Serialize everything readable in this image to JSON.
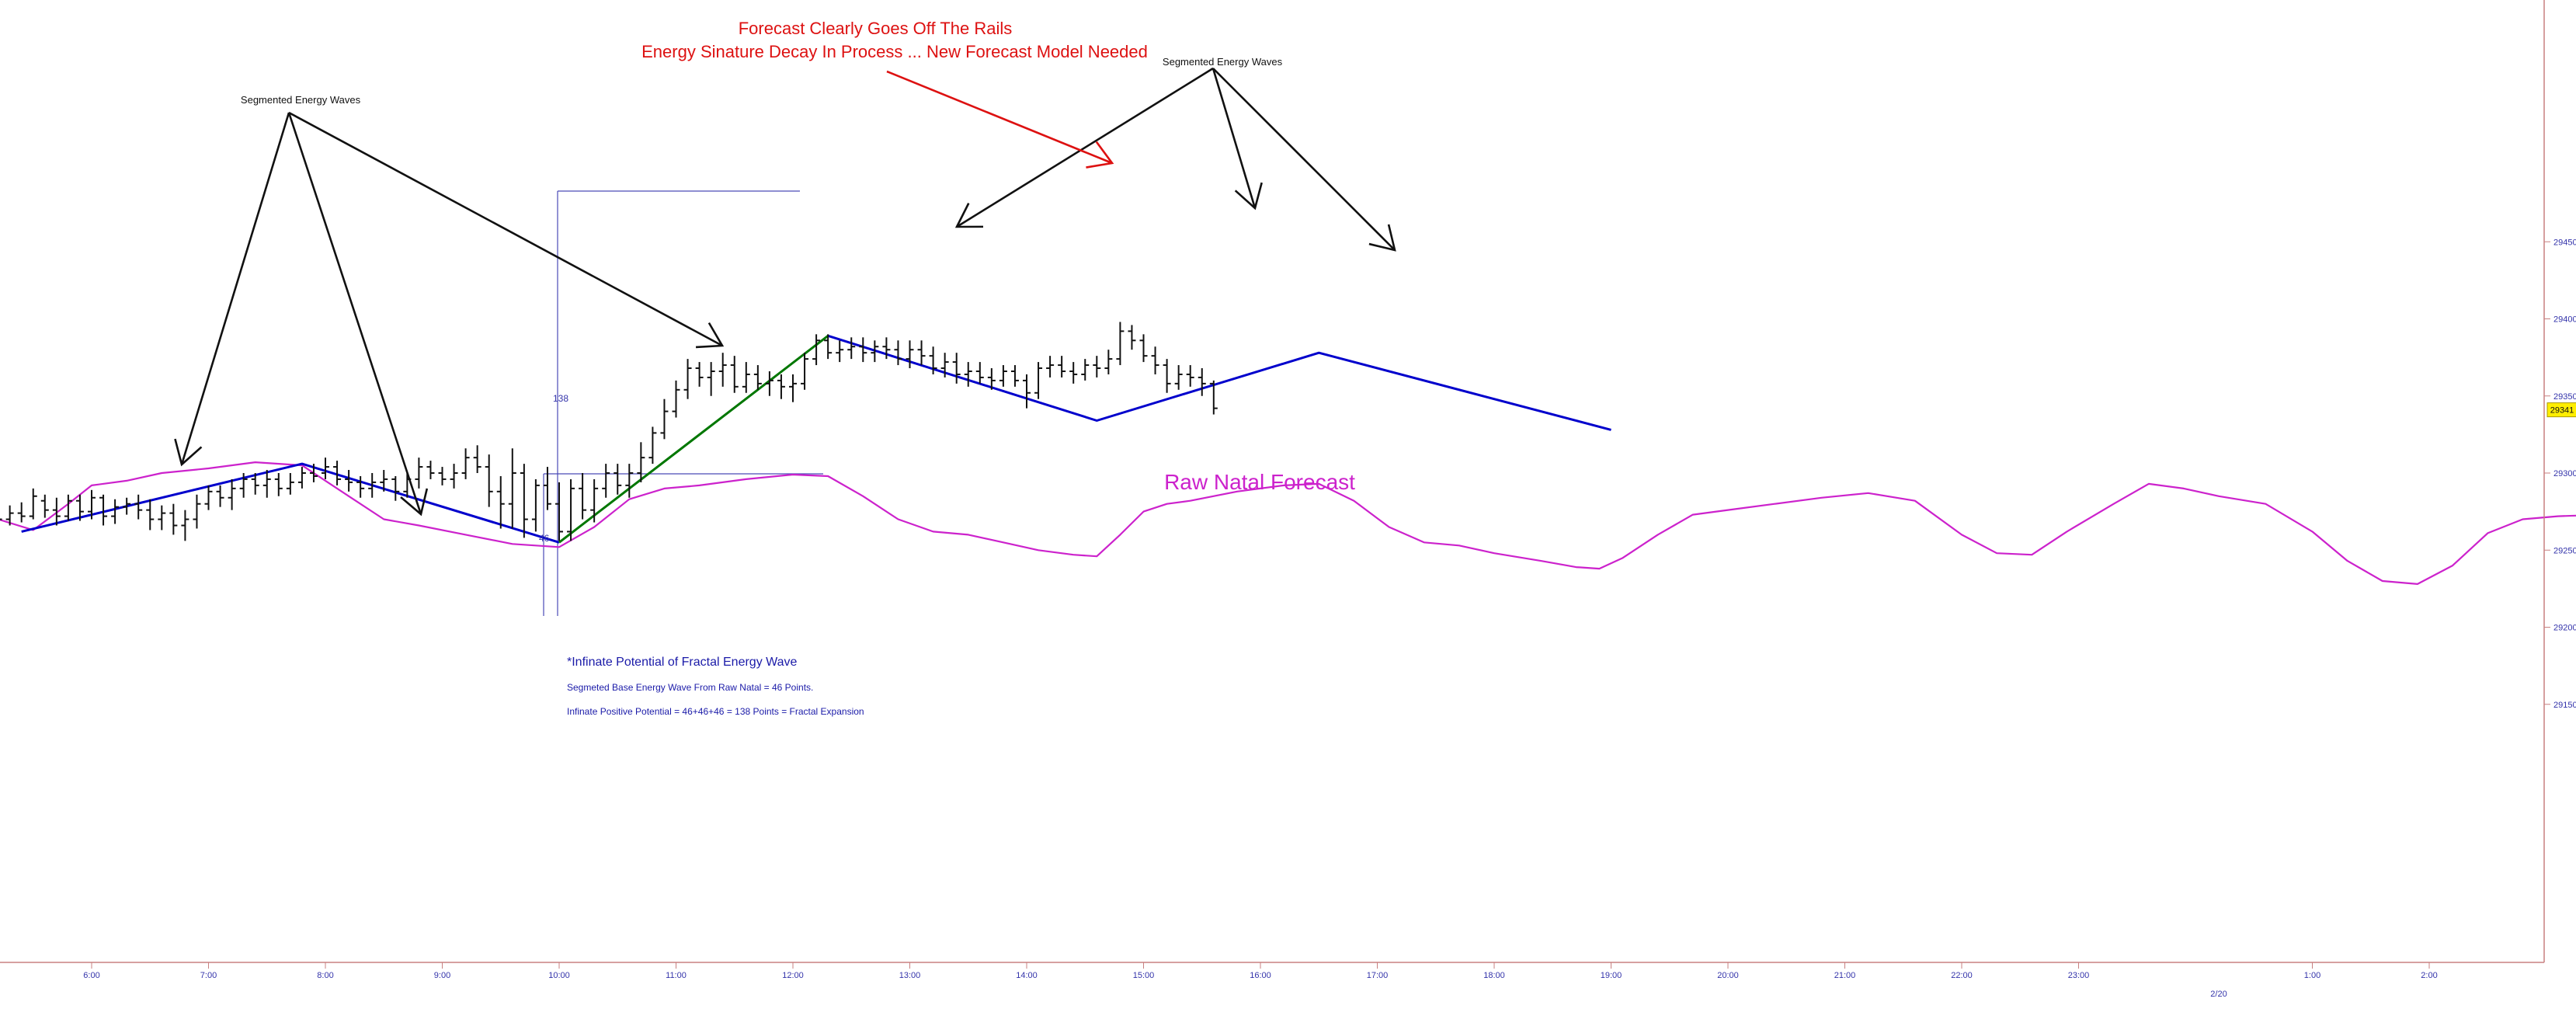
{
  "chart_data": {
    "type": "line",
    "xlabel": "",
    "ylabel": "",
    "x_axis": {
      "ticks": [
        {
          "label": "6:00",
          "t": 6.0
        },
        {
          "label": "7:00",
          "t": 7.0
        },
        {
          "label": "8:00",
          "t": 8.0
        },
        {
          "label": "9:00",
          "t": 9.0
        },
        {
          "label": "10:00",
          "t": 10.0
        },
        {
          "label": "11:00",
          "t": 11.0
        },
        {
          "label": "12:00",
          "t": 12.0
        },
        {
          "label": "13:00",
          "t": 13.0
        },
        {
          "label": "14:00",
          "t": 14.0
        },
        {
          "label": "15:00",
          "t": 15.0
        },
        {
          "label": "16:00",
          "t": 16.0
        },
        {
          "label": "17:00",
          "t": 17.0
        },
        {
          "label": "18:00",
          "t": 18.0
        },
        {
          "label": "19:00",
          "t": 19.0
        },
        {
          "label": "20:00",
          "t": 20.0
        },
        {
          "label": "21:00",
          "t": 21.0
        },
        {
          "label": "22:00",
          "t": 22.0
        },
        {
          "label": "23:00",
          "t": 23.0
        },
        {
          "label": "1:00",
          "t": 25.0
        },
        {
          "label": "2:00",
          "t": 26.0
        }
      ],
      "date_marker": {
        "label": "2/20",
        "t": 24.0
      }
    },
    "y_axis": {
      "ticks": [
        29150,
        29200,
        29250,
        29300,
        29350,
        29400,
        29450
      ],
      "range": [
        29137,
        29452
      ]
    },
    "last_price": 29341,
    "ohlc": [
      [
        5.2,
        29268,
        29275,
        29263,
        29270
      ],
      [
        5.3,
        29270,
        29279,
        29266,
        29274
      ],
      [
        5.4,
        29274,
        29281,
        29268,
        29272
      ],
      [
        5.5,
        29272,
        29290,
        29270,
        29285
      ],
      [
        5.6,
        29282,
        29286,
        29271,
        29276
      ],
      [
        5.7,
        29276,
        29284,
        29266,
        29272
      ],
      [
        5.8,
        29272,
        29286,
        29269,
        29282
      ],
      [
        5.9,
        29282,
        29286,
        29269,
        29275
      ],
      [
        6.0,
        29275,
        29289,
        29270,
        29284
      ],
      [
        6.1,
        29284,
        29286,
        29266,
        29272
      ],
      [
        6.2,
        29272,
        29283,
        29267,
        29278
      ],
      [
        6.3,
        29278,
        29284,
        29273,
        29280
      ],
      [
        6.4,
        29280,
        29286,
        29270,
        29276
      ],
      [
        6.5,
        29276,
        29283,
        29263,
        29270
      ],
      [
        6.6,
        29270,
        29279,
        29263,
        29274
      ],
      [
        6.7,
        29274,
        29280,
        29260,
        29266
      ],
      [
        6.8,
        29266,
        29276,
        29256,
        29270
      ],
      [
        6.9,
        29270,
        29286,
        29264,
        29280
      ],
      [
        7.0,
        29280,
        29292,
        29276,
        29288
      ],
      [
        7.1,
        29288,
        29292,
        29278,
        29284
      ],
      [
        7.2,
        29284,
        29296,
        29276,
        29290
      ],
      [
        7.3,
        29290,
        29300,
        29284,
        29296
      ],
      [
        7.4,
        29296,
        29300,
        29286,
        29292
      ],
      [
        7.5,
        29292,
        29302,
        29284,
        29296
      ],
      [
        7.6,
        29296,
        29300,
        29285,
        29290
      ],
      [
        7.7,
        29290,
        29300,
        29286,
        29294
      ],
      [
        7.8,
        29294,
        29304,
        29290,
        29300
      ],
      [
        7.9,
        29300,
        29306,
        29294,
        29298
      ],
      [
        8.0,
        29300,
        29310,
        29296,
        29304
      ],
      [
        8.1,
        29304,
        29308,
        29292,
        29296
      ],
      [
        8.2,
        29296,
        29302,
        29288,
        29294
      ],
      [
        8.3,
        29294,
        29298,
        29284,
        29290
      ],
      [
        8.4,
        29290,
        29300,
        29284,
        29294
      ],
      [
        8.5,
        29294,
        29302,
        29288,
        29296
      ],
      [
        8.6,
        29296,
        29298,
        29282,
        29288
      ],
      [
        8.7,
        29288,
        29300,
        29284,
        29296
      ],
      [
        8.8,
        29296,
        29310,
        29290,
        29304
      ],
      [
        8.9,
        29304,
        29308,
        29296,
        29300
      ],
      [
        9.0,
        29300,
        29304,
        29292,
        29296
      ],
      [
        9.1,
        29296,
        29306,
        29290,
        29300
      ],
      [
        9.2,
        29300,
        29316,
        29296,
        29310
      ],
      [
        9.3,
        29310,
        29318,
        29300,
        29304
      ],
      [
        9.4,
        29304,
        29312,
        29278,
        29288
      ],
      [
        9.5,
        29288,
        29298,
        29264,
        29280
      ],
      [
        9.6,
        29280,
        29316,
        29264,
        29300
      ],
      [
        9.7,
        29300,
        29306,
        29258,
        29270
      ],
      [
        9.8,
        29270,
        29296,
        29262,
        29292
      ],
      [
        9.9,
        29292,
        29304,
        29276,
        29280
      ],
      [
        10.0,
        29280,
        29294,
        29256,
        29262
      ],
      [
        10.1,
        29262,
        29296,
        29256,
        29290
      ],
      [
        10.2,
        29290,
        29300,
        29270,
        29276
      ],
      [
        10.3,
        29276,
        29296,
        29268,
        29290
      ],
      [
        10.4,
        29290,
        29306,
        29284,
        29300
      ],
      [
        10.5,
        29300,
        29306,
        29286,
        29292
      ],
      [
        10.6,
        29292,
        29306,
        29284,
        29300
      ],
      [
        10.7,
        29300,
        29320,
        29294,
        29310
      ],
      [
        10.8,
        29310,
        29330,
        29306,
        29326
      ],
      [
        10.9,
        29326,
        29348,
        29322,
        29340
      ],
      [
        11.0,
        29340,
        29360,
        29336,
        29354
      ],
      [
        11.1,
        29354,
        29374,
        29348,
        29368
      ],
      [
        11.2,
        29368,
        29372,
        29356,
        29362
      ],
      [
        11.3,
        29362,
        29372,
        29350,
        29366
      ],
      [
        11.4,
        29366,
        29378,
        29356,
        29370
      ],
      [
        11.5,
        29370,
        29376,
        29352,
        29356
      ],
      [
        11.6,
        29356,
        29372,
        29352,
        29364
      ],
      [
        11.7,
        29364,
        29370,
        29354,
        29358
      ],
      [
        11.8,
        29358,
        29366,
        29350,
        29360
      ],
      [
        11.9,
        29360,
        29364,
        29348,
        29356
      ],
      [
        12.0,
        29356,
        29364,
        29346,
        29358
      ],
      [
        12.1,
        29358,
        29378,
        29354,
        29374
      ],
      [
        12.2,
        29374,
        29390,
        29370,
        29386
      ],
      [
        12.3,
        29386,
        29390,
        29374,
        29378
      ],
      [
        12.4,
        29378,
        29386,
        29372,
        29380
      ],
      [
        12.5,
        29380,
        29388,
        29374,
        29382
      ],
      [
        12.6,
        29382,
        29388,
        29372,
        29378
      ],
      [
        12.7,
        29378,
        29386,
        29372,
        29382
      ],
      [
        12.8,
        29382,
        29388,
        29374,
        29380
      ],
      [
        12.9,
        29380,
        29386,
        29370,
        29374
      ],
      [
        13.0,
        29374,
        29386,
        29368,
        29380
      ],
      [
        13.1,
        29380,
        29386,
        29370,
        29376
      ],
      [
        13.2,
        29376,
        29382,
        29364,
        29368
      ],
      [
        13.3,
        29368,
        29378,
        29362,
        29372
      ],
      [
        13.4,
        29372,
        29378,
        29358,
        29364
      ],
      [
        13.5,
        29364,
        29372,
        29356,
        29366
      ],
      [
        13.6,
        29366,
        29372,
        29358,
        29362
      ],
      [
        13.7,
        29362,
        29368,
        29354,
        29360
      ],
      [
        13.8,
        29360,
        29370,
        29356,
        29366
      ],
      [
        13.9,
        29366,
        29370,
        29356,
        29360
      ],
      [
        14.0,
        29360,
        29364,
        29342,
        29352
      ],
      [
        14.1,
        29352,
        29372,
        29348,
        29368
      ],
      [
        14.2,
        29368,
        29376,
        29362,
        29370
      ],
      [
        14.3,
        29370,
        29376,
        29362,
        29366
      ],
      [
        14.4,
        29366,
        29372,
        29358,
        29364
      ],
      [
        14.5,
        29364,
        29374,
        29360,
        29370
      ],
      [
        14.6,
        29370,
        29376,
        29362,
        29368
      ],
      [
        14.7,
        29368,
        29380,
        29364,
        29374
      ],
      [
        14.8,
        29374,
        29398,
        29370,
        29392
      ],
      [
        14.9,
        29392,
        29396,
        29380,
        29386
      ],
      [
        15.0,
        29386,
        29390,
        29372,
        29376
      ],
      [
        15.1,
        29376,
        29382,
        29364,
        29370
      ],
      [
        15.2,
        29370,
        29374,
        29352,
        29358
      ],
      [
        15.3,
        29358,
        29370,
        29354,
        29364
      ],
      [
        15.4,
        29364,
        29370,
        29356,
        29362
      ],
      [
        15.5,
        29362,
        29368,
        29350,
        29358
      ],
      [
        15.6,
        29358,
        29360,
        29338,
        29342
      ]
    ],
    "series": [
      {
        "name": "Raw Natal Forecast",
        "color": "#cc22cc",
        "points": [
          [
            5.2,
            29270
          ],
          [
            5.5,
            29263
          ],
          [
            5.8,
            29280
          ],
          [
            6.0,
            29292
          ],
          [
            6.3,
            29295
          ],
          [
            6.6,
            29300
          ],
          [
            7.0,
            29303
          ],
          [
            7.4,
            29307
          ],
          [
            7.8,
            29305
          ],
          [
            8.2,
            29285
          ],
          [
            8.5,
            29270
          ],
          [
            8.8,
            29266
          ],
          [
            9.2,
            29260
          ],
          [
            9.6,
            29254
          ],
          [
            10.0,
            29252
          ],
          [
            10.3,
            29265
          ],
          [
            10.6,
            29283
          ],
          [
            10.9,
            29290
          ],
          [
            11.2,
            29292
          ],
          [
            11.6,
            29296
          ],
          [
            12.0,
            29299
          ],
          [
            12.3,
            29298
          ],
          [
            12.6,
            29285
          ],
          [
            12.9,
            29270
          ],
          [
            13.2,
            29262
          ],
          [
            13.5,
            29260
          ],
          [
            13.8,
            29255
          ],
          [
            14.1,
            29250
          ],
          [
            14.4,
            29247
          ],
          [
            14.6,
            29246
          ],
          [
            14.8,
            29260
          ],
          [
            15.0,
            29275
          ],
          [
            15.2,
            29280
          ],
          [
            15.4,
            29282
          ],
          [
            15.8,
            29288
          ],
          [
            16.2,
            29292
          ],
          [
            16.5,
            29293
          ],
          [
            16.8,
            29282
          ],
          [
            17.1,
            29265
          ],
          [
            17.4,
            29255
          ],
          [
            17.7,
            29253
          ],
          [
            18.0,
            29248
          ],
          [
            18.4,
            29243
          ],
          [
            18.7,
            29239
          ],
          [
            18.9,
            29238
          ],
          [
            19.1,
            29245
          ],
          [
            19.4,
            29260
          ],
          [
            19.7,
            29273
          ],
          [
            20.0,
            29276
          ],
          [
            20.4,
            29280
          ],
          [
            20.8,
            29284
          ],
          [
            21.2,
            29287
          ],
          [
            21.6,
            29282
          ],
          [
            22.0,
            29260
          ],
          [
            22.3,
            29248
          ],
          [
            22.6,
            29247
          ],
          [
            22.9,
            29262
          ],
          [
            23.3,
            29280
          ],
          [
            23.6,
            29293
          ],
          [
            23.9,
            29290
          ],
          [
            24.2,
            29285
          ],
          [
            24.6,
            29280
          ],
          [
            25.0,
            29262
          ],
          [
            25.3,
            29243
          ],
          [
            25.6,
            29230
          ],
          [
            25.9,
            29228
          ],
          [
            26.2,
            29240
          ],
          [
            26.5,
            29261
          ],
          [
            26.8,
            29270
          ],
          [
            27.1,
            29272
          ],
          [
            27.5,
            29273
          ],
          [
            27.9,
            29273
          ]
        ]
      },
      {
        "name": "",
        "color": "#0000cc",
        "points": [
          [
            5.4,
            29262
          ],
          [
            7.8,
            29306
          ],
          [
            10.0,
            29255
          ]
        ]
      },
      {
        "name": "",
        "color": "#0000cc",
        "points": [
          [
            12.3,
            29389
          ],
          [
            14.6,
            29334
          ],
          [
            16.5,
            29378
          ],
          [
            19.0,
            29328
          ]
        ]
      },
      {
        "name": "",
        "color": "#007700",
        "points": [
          [
            10.0,
            29255
          ],
          [
            12.3,
            29389
          ]
        ]
      }
    ],
    "annotations": {
      "title_line1": "Forecast Clearly Goes Off The Rails",
      "title_line2": "Energy Sinature Decay In Process ... New Forecast Model Needed",
      "wave_label_left": "Segmented Energy Waves",
      "wave_label_right": "Segmented Energy Waves",
      "natal_label": "Raw Natal Forecast",
      "note_heading": "*Infinate Potential of Fractal Energy Wave",
      "note_line1": "Segmeted Base Energy Wave From Raw Natal = 46 Points.",
      "note_line2": "Infinate Positive Potential = 46+46+46 = 138 Points = Fractal Expansion",
      "measure_138": "138",
      "measure_46": "46"
    }
  }
}
